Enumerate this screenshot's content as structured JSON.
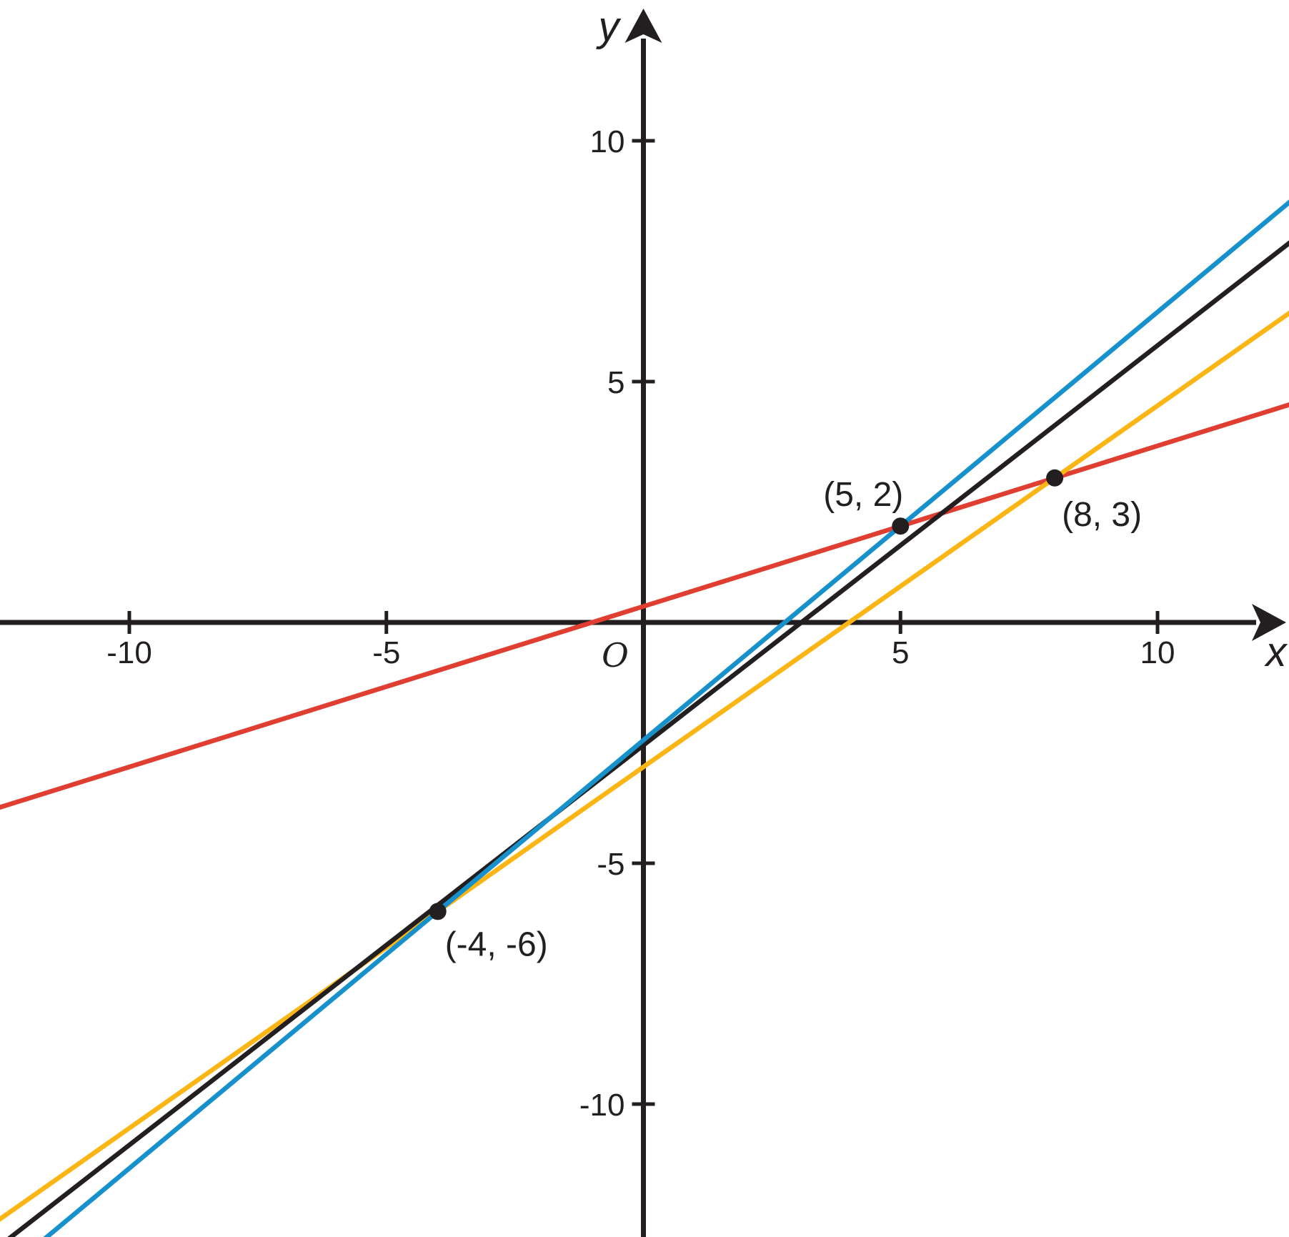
{
  "figure": {
    "background": "#FFFFFF",
    "axis_color": "#231F20",
    "text_color": "#231F20",
    "dot_color": "#231F20"
  },
  "chart_data": {
    "type": "line",
    "title": "",
    "xlabel": "x",
    "ylabel": "y",
    "origin_label": "O",
    "grid": false,
    "legend": "none",
    "xlim": [
      -12.5,
      12.6
    ],
    "ylim": [
      -12.8,
      12.9
    ],
    "x_ticks": [
      -10,
      -5,
      5,
      10
    ],
    "y_ticks": [
      10,
      5,
      -5,
      -10
    ],
    "lines": [
      {
        "name": "red-line",
        "color": "#E03E31",
        "slope": 0.3333,
        "intercept": 0.3333,
        "passes_through": "(5, 2) and (8, 3)"
      },
      {
        "name": "orange-line",
        "color": "#FBB514",
        "slope": 0.75,
        "intercept": -3,
        "passes_through": "(-4, -6) and (8, 3)"
      },
      {
        "name": "black-line",
        "color": "#231F20",
        "slope": 0.83,
        "intercept": -2.55,
        "passes_through": "near (-4, -6)"
      },
      {
        "name": "blue-line",
        "color": "#1791CB",
        "slope": 0.8889,
        "intercept": -2.4444,
        "passes_through": "(-4, -6) and (5, 2)"
      }
    ],
    "points": [
      {
        "x": 5,
        "y": 2,
        "label": "(5, 2)"
      },
      {
        "x": 8,
        "y": 3,
        "label": "(8, 3)"
      },
      {
        "x": -4,
        "y": -6,
        "label": "(-4, -6)"
      }
    ]
  }
}
